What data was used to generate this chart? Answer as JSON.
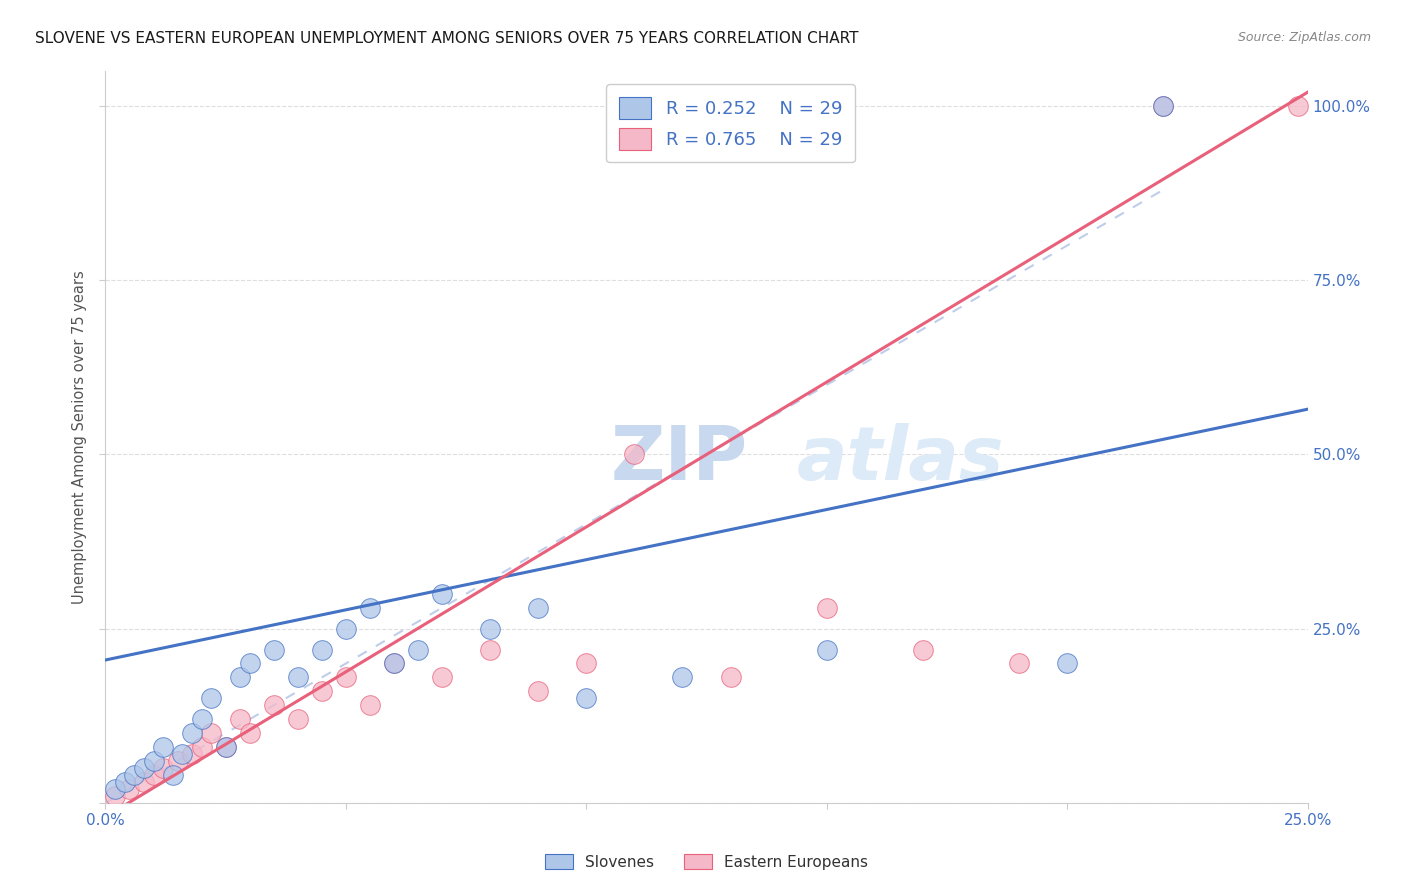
{
  "title": "SLOVENE VS EASTERN EUROPEAN UNEMPLOYMENT AMONG SENIORS OVER 75 YEARS CORRELATION CHART",
  "source": "Source: ZipAtlas.com",
  "ylabel": "Unemployment Among Seniors over 75 years",
  "legend_slovenes": "Slovenes",
  "legend_eastern": "Eastern Europeans",
  "R_slovene": 0.252,
  "N_slovene": 29,
  "R_eastern": 0.765,
  "N_eastern": 29,
  "color_slovene": "#aec6e8",
  "color_eastern": "#f5b8c8",
  "line_color_slovene": "#4472c4",
  "line_color_eastern": "#e8607a",
  "diagonal_color": "#b8c8e8",
  "text_color_blue": "#4472c4",
  "watermark_color": "#dde8f5",
  "background_color": "#ffffff",
  "grid_color": "#d0d0d0",
  "slovene_x": [
    0.002,
    0.004,
    0.006,
    0.008,
    0.01,
    0.012,
    0.014,
    0.016,
    0.018,
    0.02,
    0.022,
    0.025,
    0.028,
    0.03,
    0.035,
    0.04,
    0.045,
    0.05,
    0.055,
    0.06,
    0.065,
    0.07,
    0.08,
    0.09,
    0.1,
    0.12,
    0.15,
    0.2,
    0.22
  ],
  "slovene_y": [
    0.02,
    0.03,
    0.04,
    0.05,
    0.06,
    0.08,
    0.04,
    0.07,
    0.1,
    0.12,
    0.15,
    0.08,
    0.18,
    0.2,
    0.22,
    0.18,
    0.22,
    0.25,
    0.28,
    0.2,
    0.22,
    0.3,
    0.25,
    0.28,
    0.15,
    0.18,
    0.22,
    0.2,
    1.0
  ],
  "eastern_x": [
    0.002,
    0.005,
    0.008,
    0.01,
    0.012,
    0.015,
    0.018,
    0.02,
    0.022,
    0.025,
    0.028,
    0.03,
    0.035,
    0.04,
    0.045,
    0.05,
    0.055,
    0.06,
    0.07,
    0.08,
    0.09,
    0.1,
    0.11,
    0.13,
    0.15,
    0.17,
    0.19,
    0.22,
    0.248
  ],
  "eastern_y": [
    0.01,
    0.02,
    0.03,
    0.04,
    0.05,
    0.06,
    0.07,
    0.08,
    0.1,
    0.08,
    0.12,
    0.1,
    0.14,
    0.12,
    0.16,
    0.18,
    0.14,
    0.2,
    0.18,
    0.22,
    0.16,
    0.2,
    0.5,
    0.18,
    0.28,
    0.22,
    0.2,
    1.0,
    1.0
  ],
  "slovene_line": [
    0.205,
    0.565
  ],
  "eastern_line": [
    -0.02,
    1.02
  ],
  "diag_line": [
    0.0,
    0.25,
    0.0,
    1.0
  ],
  "xlim": [
    0.0,
    0.25
  ],
  "ylim": [
    0.0,
    1.05
  ]
}
